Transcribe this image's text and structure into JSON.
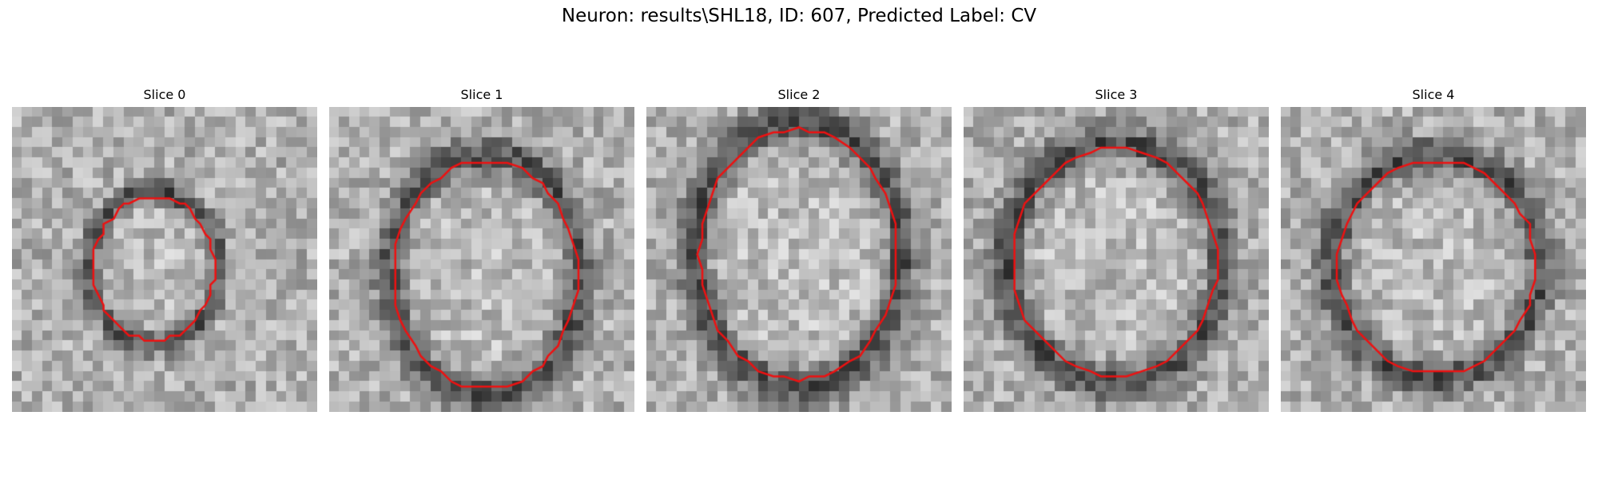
{
  "figure": {
    "title": "Neuron: results\\SHL18, ID: 607, Predicted Label: CV"
  },
  "slices": [
    {
      "label": "Slice 0"
    },
    {
      "label": "Slice 1"
    },
    {
      "label": "Slice 2"
    },
    {
      "label": "Slice 3"
    },
    {
      "label": "Slice 4"
    }
  ],
  "colors": {
    "contour": "#ee1111",
    "background": "#ffffff"
  }
}
